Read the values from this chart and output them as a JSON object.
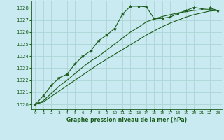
{
  "title": "Graphe pression niveau de la mer (hPa)",
  "background_color": "#c8eaf0",
  "grid_color": "#b0d8d8",
  "line_color": "#1a5c1a",
  "marker_color": "#1a5c1a",
  "xlim": [
    -0.5,
    23.5
  ],
  "ylim": [
    1019.6,
    1028.55
  ],
  "xticks": [
    0,
    1,
    2,
    3,
    4,
    5,
    6,
    7,
    8,
    9,
    10,
    11,
    12,
    13,
    14,
    15,
    16,
    17,
    18,
    19,
    20,
    21,
    22,
    23
  ],
  "yticks": [
    1020,
    1021,
    1022,
    1023,
    1024,
    1025,
    1026,
    1027,
    1028
  ],
  "series1_x": [
    0,
    1,
    2,
    3,
    4,
    5,
    6,
    7,
    8,
    9,
    10,
    11,
    12,
    13,
    14,
    15,
    16,
    17,
    18,
    19,
    20,
    21,
    22,
    23
  ],
  "series1_y": [
    1020.0,
    1020.7,
    1021.55,
    1022.2,
    1022.5,
    1023.35,
    1024.0,
    1024.45,
    1025.3,
    1025.75,
    1026.3,
    1027.5,
    1028.15,
    1028.15,
    1028.1,
    1027.1,
    1027.15,
    1027.25,
    1027.55,
    1027.8,
    1028.05,
    1027.95,
    1028.0,
    1027.8
  ],
  "series2_x": [
    0,
    1,
    2,
    3,
    4,
    5,
    6,
    7,
    8,
    9,
    10,
    11,
    12,
    13,
    14,
    15,
    16,
    17,
    18,
    19,
    20,
    21,
    22,
    23
  ],
  "series2_y": [
    1020.0,
    1020.3,
    1020.9,
    1021.5,
    1022.0,
    1022.55,
    1023.1,
    1023.6,
    1024.0,
    1024.5,
    1025.0,
    1025.5,
    1026.0,
    1026.4,
    1026.85,
    1027.1,
    1027.3,
    1027.45,
    1027.6,
    1027.7,
    1027.8,
    1027.85,
    1027.87,
    1027.8
  ],
  "series3_x": [
    0,
    1,
    2,
    3,
    4,
    5,
    6,
    7,
    8,
    9,
    10,
    11,
    12,
    13,
    14,
    15,
    16,
    17,
    18,
    19,
    20,
    21,
    22,
    23
  ],
  "series3_y": [
    1020.0,
    1020.2,
    1020.65,
    1021.1,
    1021.55,
    1022.0,
    1022.45,
    1022.9,
    1023.35,
    1023.75,
    1024.15,
    1024.55,
    1024.95,
    1025.35,
    1025.75,
    1026.1,
    1026.45,
    1026.75,
    1027.0,
    1027.25,
    1027.45,
    1027.6,
    1027.75,
    1027.8
  ]
}
